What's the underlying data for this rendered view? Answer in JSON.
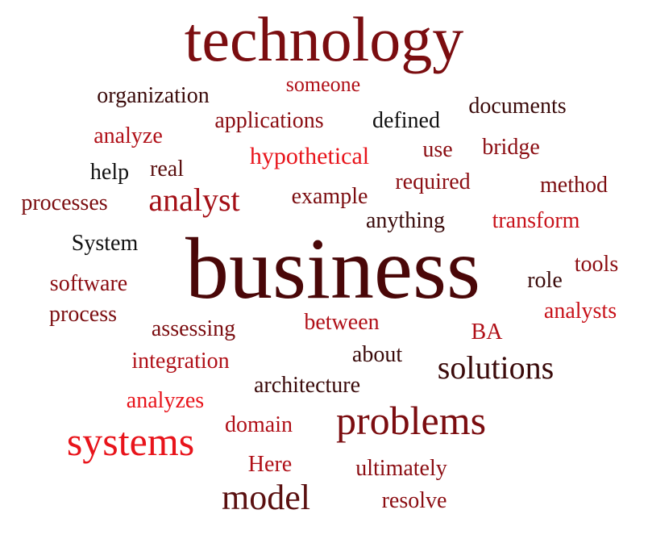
{
  "colors": {
    "maroon": "#7b0d10",
    "darkred": "#4a0708",
    "red": "#e8141b",
    "crimson": "#b01018",
    "black": "#111111",
    "brown": "#5a1010"
  },
  "words": [
    {
      "text": "technology",
      "color": "#7b0d10"
    },
    {
      "text": "organization",
      "color": "#3a0a0a"
    },
    {
      "text": "someone",
      "color": "#b01018"
    },
    {
      "text": "documents",
      "color": "#3a0a0a"
    },
    {
      "text": "applications",
      "color": "#8b0d12"
    },
    {
      "text": "defined",
      "color": "#111111"
    },
    {
      "text": "analyze",
      "color": "#b01018"
    },
    {
      "text": "hypothetical",
      "color": "#e8141b"
    },
    {
      "text": "use",
      "color": "#8b0d12"
    },
    {
      "text": "bridge",
      "color": "#8b0d12"
    },
    {
      "text": "help",
      "color": "#111111"
    },
    {
      "text": "real",
      "color": "#5a1010"
    },
    {
      "text": "required",
      "color": "#8b0d12"
    },
    {
      "text": "method",
      "color": "#7b0d10"
    },
    {
      "text": "analyst",
      "color": "#a30f16"
    },
    {
      "text": "processes",
      "color": "#7b0d10"
    },
    {
      "text": "example",
      "color": "#7b0d10"
    },
    {
      "text": "anything",
      "color": "#3a0a0a"
    },
    {
      "text": "transform",
      "color": "#c8121a"
    },
    {
      "text": "System",
      "color": "#111111"
    },
    {
      "text": "business",
      "color": "#4a0708"
    },
    {
      "text": "tools",
      "color": "#8b0d12"
    },
    {
      "text": "software",
      "color": "#8b0d12"
    },
    {
      "text": "role",
      "color": "#3a0a0a"
    },
    {
      "text": "analysts",
      "color": "#c8121a"
    },
    {
      "text": "process",
      "color": "#7b0d10"
    },
    {
      "text": "assessing",
      "color": "#7b0d10"
    },
    {
      "text": "between",
      "color": "#b01018"
    },
    {
      "text": "BA",
      "color": "#b01018"
    },
    {
      "text": "about",
      "color": "#3a0a0a"
    },
    {
      "text": "integration",
      "color": "#b01018"
    },
    {
      "text": "solutions",
      "color": "#3a0a0a"
    },
    {
      "text": "architecture",
      "color": "#3a0a0a"
    },
    {
      "text": "analyzes",
      "color": "#e8141b"
    },
    {
      "text": "domain",
      "color": "#b01018"
    },
    {
      "text": "problems",
      "color": "#7b0d10"
    },
    {
      "text": "systems",
      "color": "#e8141b"
    },
    {
      "text": "Here",
      "color": "#b01018"
    },
    {
      "text": "ultimately",
      "color": "#8b0d12"
    },
    {
      "text": "model",
      "color": "#5a1010"
    },
    {
      "text": "resolve",
      "color": "#8b0d12"
    }
  ]
}
